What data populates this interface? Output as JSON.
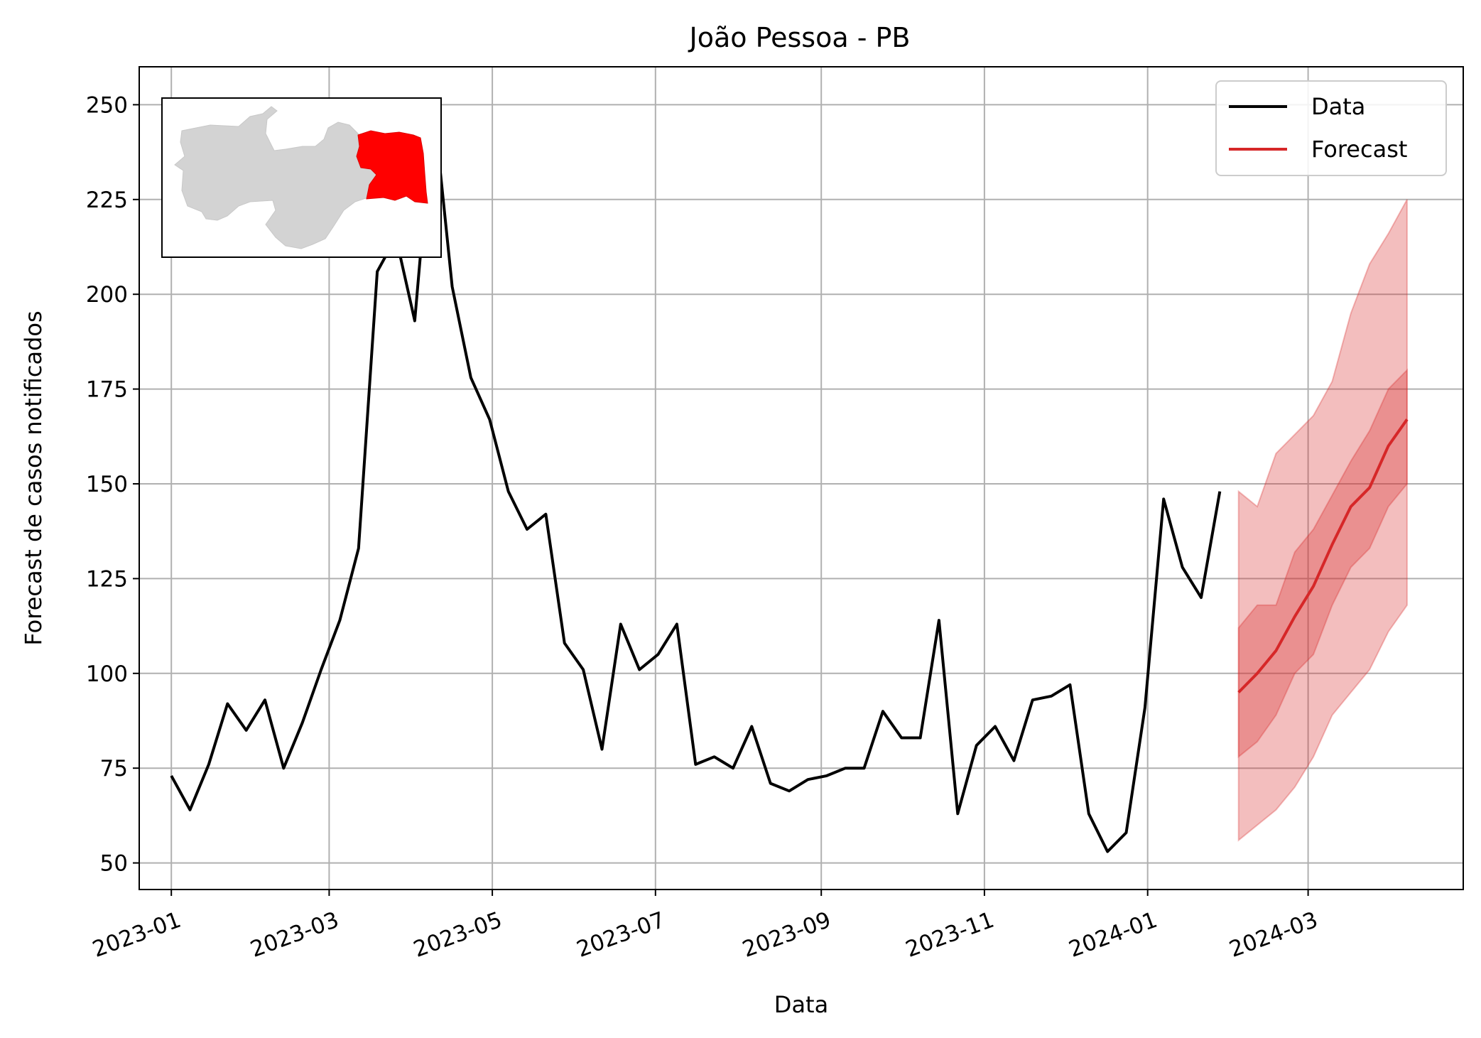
{
  "chart_data": {
    "type": "line",
    "title": "João Pessoa - PB",
    "xlabel": "Data",
    "ylabel": "Forecast de casos notificados",
    "x_ticks": [
      "2023-01-01",
      "2023-03-01",
      "2023-05-01",
      "2023-07-01",
      "2023-09-01",
      "2023-11-01",
      "2024-01-01",
      "2024-03-01"
    ],
    "x_tick_labels": [
      "2023-01",
      "2023-03",
      "2023-05",
      "2023-07",
      "2023-09",
      "2023-11",
      "2024-01",
      "2024-03"
    ],
    "y_ticks": [
      50,
      75,
      100,
      125,
      150,
      175,
      200,
      225,
      250
    ],
    "xlim": [
      "2022-12-20",
      "2024-04-28"
    ],
    "ylim": [
      43,
      260
    ],
    "grid": true,
    "legend_position": "top-right",
    "legend": [
      "Data",
      "Forecast"
    ],
    "colors": {
      "data": "#000000",
      "forecast": "#d62728",
      "map_region": "#ff0000",
      "map_base": "#d3d3d3"
    },
    "series": [
      {
        "name": "Data",
        "x": [
          "2023-01-01",
          "2023-01-08",
          "2023-01-15",
          "2023-01-22",
          "2023-01-29",
          "2023-02-05",
          "2023-02-12",
          "2023-02-19",
          "2023-02-26",
          "2023-03-05",
          "2023-03-12",
          "2023-03-19",
          "2023-03-26",
          "2023-04-02",
          "2023-04-09",
          "2023-04-16",
          "2023-04-23",
          "2023-04-30",
          "2023-05-07",
          "2023-05-14",
          "2023-05-21",
          "2023-05-28",
          "2023-06-04",
          "2023-06-11",
          "2023-06-18",
          "2023-06-25",
          "2023-07-02",
          "2023-07-09",
          "2023-07-16",
          "2023-07-23",
          "2023-07-30",
          "2023-08-06",
          "2023-08-13",
          "2023-08-20",
          "2023-08-27",
          "2023-09-03",
          "2023-09-10",
          "2023-09-17",
          "2023-09-24",
          "2023-10-01",
          "2023-10-08",
          "2023-10-15",
          "2023-10-22",
          "2023-10-29",
          "2023-11-05",
          "2023-11-12",
          "2023-11-19",
          "2023-11-26",
          "2023-12-03",
          "2023-12-10",
          "2023-12-17",
          "2023-12-24",
          "2023-12-31",
          "2024-01-07",
          "2024-01-14",
          "2024-01-21",
          "2024-01-28"
        ],
        "values": [
          73,
          64,
          76,
          92,
          85,
          93,
          75,
          87,
          101,
          114,
          133,
          206,
          215,
          193,
          250,
          202,
          178,
          167,
          148,
          138,
          142,
          108,
          101,
          80,
          113,
          101,
          105,
          113,
          76,
          78,
          75,
          86,
          71,
          69,
          72,
          73,
          75,
          75,
          90,
          83,
          83,
          114,
          63,
          81,
          86,
          77,
          93,
          94,
          97,
          63,
          53,
          58,
          91,
          146,
          128,
          120,
          148
        ]
      },
      {
        "name": "Forecast",
        "x": [
          "2024-02-04",
          "2024-02-11",
          "2024-02-18",
          "2024-02-25",
          "2024-03-03",
          "2024-03-10",
          "2024-03-17",
          "2024-03-24",
          "2024-03-31",
          "2024-04-07"
        ],
        "values": [
          95,
          100,
          106,
          115,
          123,
          134,
          144,
          149,
          160,
          167
        ],
        "lower_inner": [
          78,
          82,
          89,
          100,
          105,
          118,
          128,
          133,
          144,
          150
        ],
        "upper_inner": [
          112,
          118,
          118,
          132,
          138,
          147,
          156,
          164,
          175,
          180
        ],
        "lower_outer": [
          56,
          60,
          64,
          70,
          78,
          89,
          95,
          101,
          111,
          118
        ],
        "upper_outer": [
          148,
          144,
          158,
          163,
          168,
          177,
          195,
          208,
          216,
          225
        ]
      }
    ]
  }
}
